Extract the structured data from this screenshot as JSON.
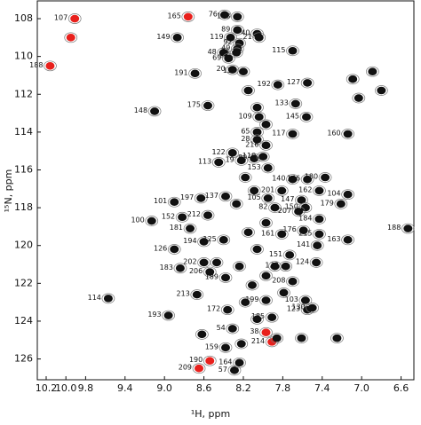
{
  "chart_data": {
    "type": "scatter",
    "x_label": "¹H, ppm",
    "y_label": "¹⁵N, ppm",
    "xlim": [
      10.29,
      6.47
    ],
    "ylim": [
      107.06,
      127.1
    ],
    "xticks": [
      10.2,
      {
        "value": 10,
        "label": "10.0"
      },
      9.8,
      9.4,
      {
        "value": 9,
        "label": "9.0"
      },
      8.6,
      8.2,
      7.8,
      7.4,
      {
        "value": 7,
        "label": "7.0"
      },
      6.6
    ],
    "yticks": [
      108,
      110,
      112,
      114,
      116,
      118,
      120,
      122,
      124,
      126
    ],
    "series": [
      {
        "color": "#e8201c",
        "x": [
          9.91,
          10.16,
          8.76,
          7.91,
          8.54,
          8.65,
          7.97,
          9.95
        ],
        "y": [
          108.0,
          110.5,
          107.9,
          125.1,
          126.1,
          126.5,
          124.6,
          109.0
        ],
        "labels": [
          "107",
          "188",
          "165",
          "214",
          "190",
          "209",
          "38",
          null
        ]
      },
      {
        "color": "#111111",
        "x": [
          8.39,
          8.26,
          8.33,
          8.26,
          8.24,
          8.26,
          8.06,
          8.04,
          8.27,
          8.4,
          8.35,
          8.87,
          7.7,
          8.69,
          8.31,
          8.2,
          7.85,
          7.55,
          7.67,
          8.56,
          9.1,
          7.56,
          8.04,
          8.06,
          8.06,
          7.97,
          7.7,
          7.14,
          8.31,
          8.22,
          8.09,
          8.45,
          8.0,
          7.95,
          7.7,
          7.55,
          7.37,
          8.9,
          8.63,
          8.38,
          7.95,
          7.81,
          7.43,
          7.14,
          7.61,
          7.88,
          7.57,
          7.21,
          8.56,
          8.82,
          7.64,
          7.43,
          9.13,
          8.74,
          7.81,
          7.59,
          7.43,
          6.53,
          7.14,
          8.9,
          8.6,
          8.4,
          7.45,
          7.73,
          8.6,
          8.84,
          8.54,
          7.77,
          7.46,
          8.38,
          7.7,
          8.67,
          8.36,
          7.97,
          7.57,
          7.55,
          9.57,
          8.96,
          7.5,
          7.91,
          8.31,
          8.38,
          8.29,
          8.24
        ],
        "y": [
          107.8,
          107.9,
          109.0,
          108.6,
          109.3,
          109.6,
          108.8,
          109.0,
          109.8,
          109.8,
          110.1,
          109.0,
          109.7,
          110.9,
          110.7,
          110.8,
          111.5,
          111.4,
          112.5,
          112.6,
          112.9,
          113.2,
          113.2,
          114.0,
          114.4,
          114.7,
          114.1,
          114.1,
          115.1,
          115.5,
          115.4,
          115.6,
          115.3,
          115.9,
          116.5,
          116.5,
          116.4,
          117.7,
          117.5,
          117.4,
          117.5,
          117.1,
          117.1,
          117.3,
          117.6,
          118.0,
          118.0,
          117.8,
          118.4,
          118.5,
          118.2,
          118.6,
          118.7,
          119.1,
          119.4,
          119.2,
          119.4,
          119.1,
          119.7,
          120.2,
          119.8,
          119.7,
          120.0,
          120.5,
          120.9,
          121.2,
          121.4,
          121.1,
          120.9,
          121.7,
          121.9,
          122.6,
          123.4,
          122.9,
          122.9,
          123.4,
          122.8,
          123.7,
          123.3,
          123.8,
          124.4,
          125.4,
          126.6,
          126.2
        ],
        "labels": [
          "76",
          "168",
          "119",
          "89",
          "92",
          "49",
          "40",
          "21",
          "46",
          "48",
          "69",
          "149",
          "115",
          "191",
          "20",
          "131",
          "192",
          "127",
          "133",
          "175",
          "148",
          "145",
          "109",
          "65",
          "28",
          "216",
          "117",
          "160",
          "122",
          "19",
          "80",
          "113",
          "110",
          "153",
          "140",
          "146",
          "180",
          "101",
          "197",
          "137",
          "105",
          "201",
          "162",
          "104",
          "147",
          "82",
          "150",
          "179",
          "212",
          "152",
          "207",
          "184",
          "100",
          "181",
          "161",
          "176",
          "215",
          "188",
          "163",
          "126",
          "194",
          "125",
          "141",
          "151",
          "202",
          "183",
          "206",
          "138",
          "124",
          "189",
          "208",
          "213",
          "172",
          "199",
          "103",
          "123",
          "114",
          "193",
          "130",
          "185",
          "54",
          "159",
          "57",
          "164"
        ]
      },
      {
        "color": "#111111",
        "x": [
          8.15,
          8.06,
          7.97,
          8.18,
          8.09,
          7.97,
          8.15,
          8.06,
          8.24,
          8.11,
          7.97,
          7.88,
          8.18,
          8.06,
          7.86,
          8.22,
          7.09,
          6.89,
          6.8,
          7.03,
          7.25,
          8.62,
          8.47,
          8.27,
          7.79,
          7.61
        ],
        "y": [
          111.8,
          112.7,
          113.6,
          116.4,
          117.1,
          118.8,
          119.3,
          120.2,
          121.1,
          122.1,
          121.6,
          121.1,
          123.0,
          123.9,
          124.9,
          125.2,
          111.2,
          110.8,
          111.8,
          112.2,
          124.9,
          124.7,
          120.9,
          117.8,
          122.5,
          124.9
        ]
      }
    ]
  }
}
